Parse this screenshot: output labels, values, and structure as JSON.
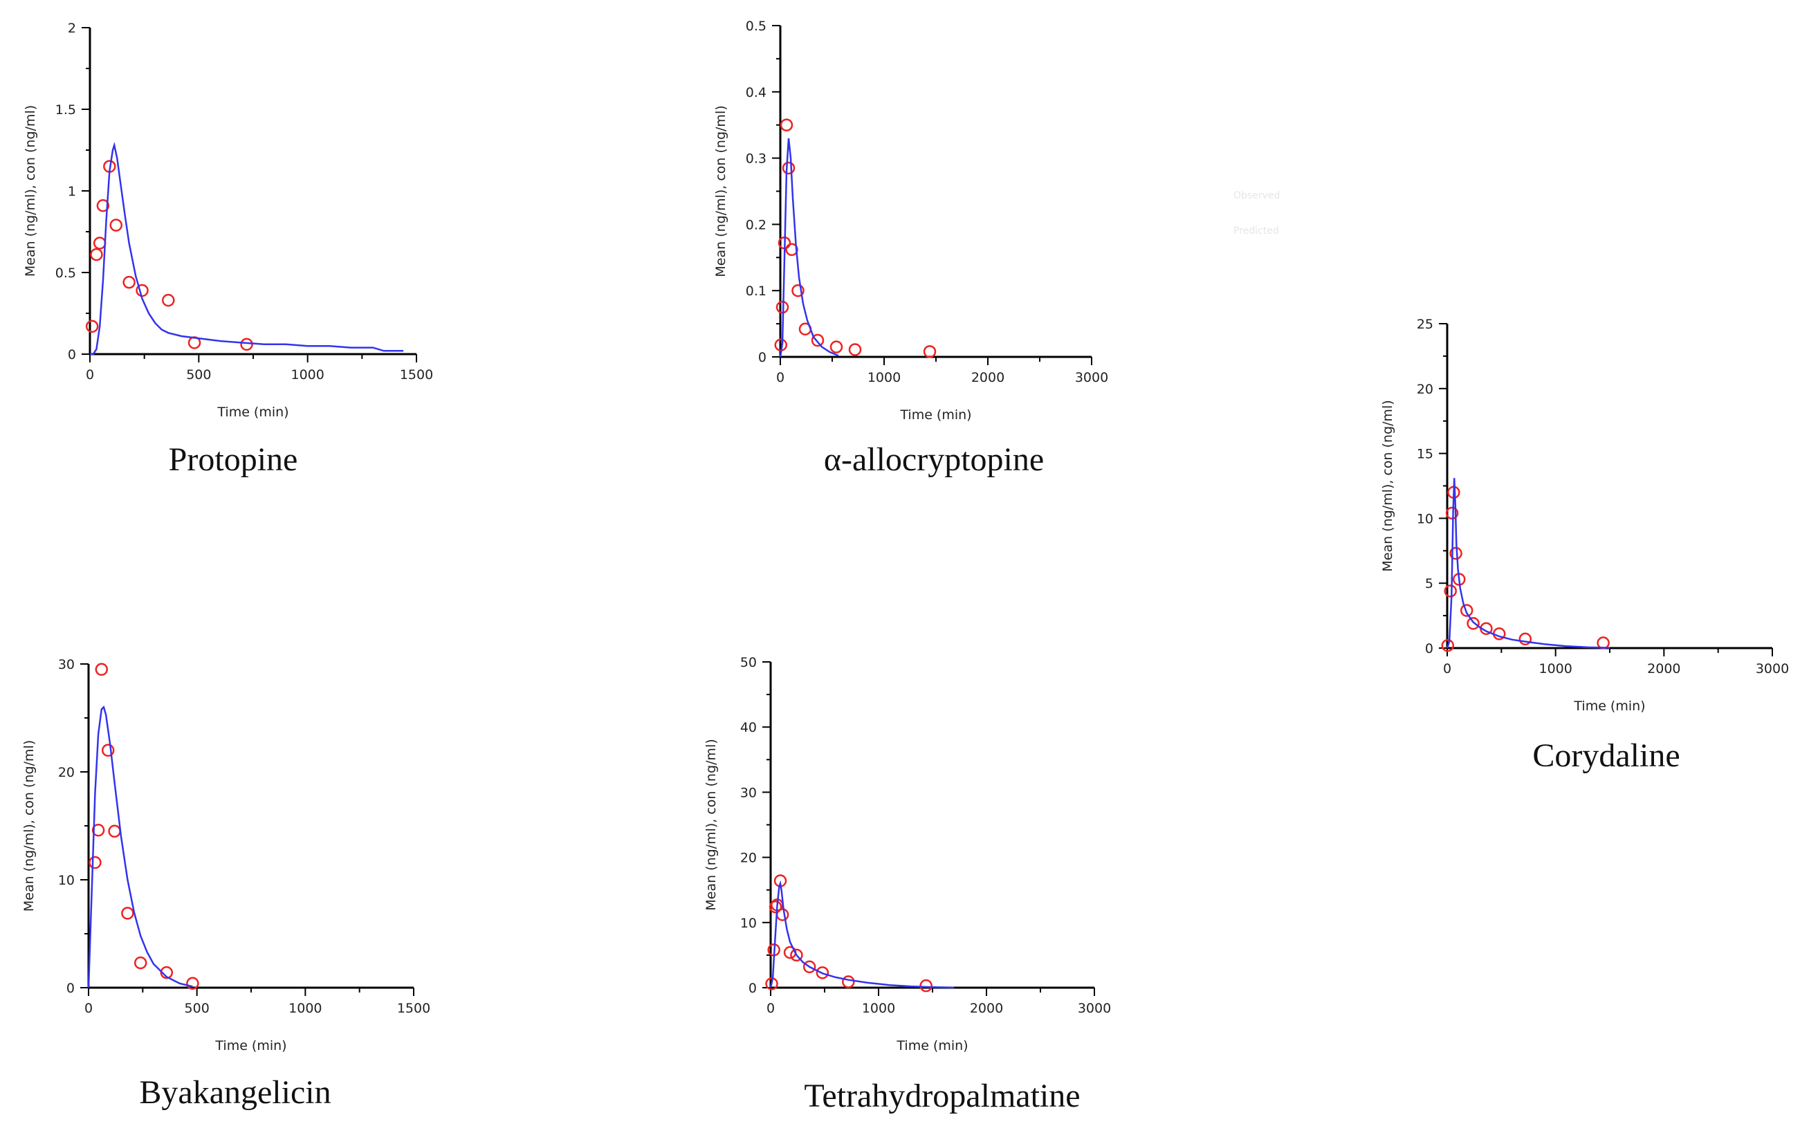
{
  "colors": {
    "observed": "#ee2222",
    "predicted": "#3333ee",
    "axis": "#000000"
  },
  "ghost_legend": {
    "observed": "Observed",
    "predicted": "Predicted"
  },
  "chart_data": [
    {
      "type": "line",
      "caption": "Protopine",
      "xlabel": "Time (min)",
      "ylabel": "Mean (ng/ml), con (ng/ml)",
      "xlim": [
        0,
        1500
      ],
      "ylim": [
        0,
        2
      ],
      "xticks": [
        0,
        500,
        1000,
        1500
      ],
      "yticks": [
        0,
        0.5,
        1,
        1.5,
        2
      ],
      "ytick_labels": [
        "0",
        "0.5",
        "1",
        "1.5",
        "2"
      ],
      "series": [
        {
          "kind": "observed",
          "x": [
            10,
            30,
            45,
            60,
            90,
            120,
            180,
            240,
            360,
            480,
            720
          ],
          "y": [
            0.17,
            0.61,
            0.68,
            0.91,
            1.15,
            0.79,
            0.44,
            0.39,
            0.33,
            0.07,
            0.06
          ]
        },
        {
          "kind": "predicted",
          "x": [
            0,
            15,
            30,
            45,
            60,
            75,
            90,
            105,
            112,
            125,
            140,
            160,
            180,
            210,
            240,
            270,
            300,
            330,
            360,
            420,
            480,
            540,
            600,
            700,
            800,
            900,
            1000,
            1100,
            1200,
            1300,
            1350,
            1440
          ],
          "y": [
            0,
            0,
            0.03,
            0.17,
            0.45,
            0.82,
            1.12,
            1.25,
            1.28,
            1.2,
            1.05,
            0.86,
            0.68,
            0.48,
            0.34,
            0.25,
            0.19,
            0.15,
            0.13,
            0.11,
            0.1,
            0.09,
            0.08,
            0.07,
            0.06,
            0.06,
            0.05,
            0.05,
            0.04,
            0.04,
            0.02,
            0.02
          ]
        }
      ]
    },
    {
      "type": "line",
      "caption": "α-allocryptopine",
      "xlabel": "Time (min)",
      "ylabel": "Mean (ng/ml), con (ng/ml)",
      "xlim": [
        0,
        3000
      ],
      "ylim": [
        0,
        0.5
      ],
      "xticks": [
        0,
        1000,
        2000,
        3000
      ],
      "yticks": [
        0,
        0.1,
        0.2,
        0.3,
        0.4,
        0.5
      ],
      "ytick_labels": [
        "0",
        "0.1",
        "0.2",
        "0.3",
        "0.4",
        "0.5"
      ],
      "series": [
        {
          "kind": "observed",
          "x": [
            5,
            20,
            40,
            60,
            80,
            110,
            170,
            240,
            360,
            540,
            720,
            1440
          ],
          "y": [
            0.018,
            0.075,
            0.172,
            0.35,
            0.285,
            0.162,
            0.1,
            0.042,
            0.025,
            0.015,
            0.011,
            0.008
          ]
        },
        {
          "kind": "predicted",
          "x": [
            0,
            20,
            40,
            60,
            80,
            100,
            120,
            150,
            180,
            220,
            260,
            320,
            400,
            480,
            560
          ],
          "y": [
            0,
            0.02,
            0.15,
            0.28,
            0.33,
            0.3,
            0.24,
            0.17,
            0.12,
            0.08,
            0.055,
            0.03,
            0.015,
            0.007,
            0.002
          ]
        }
      ]
    },
    {
      "type": "line",
      "caption": "Corydaline",
      "xlabel": "Time (min)",
      "ylabel": "Mean (ng/ml), con (ng/ml)",
      "xlim": [
        0,
        3000
      ],
      "ylim": [
        0,
        25
      ],
      "xticks": [
        0,
        1000,
        2000,
        3000
      ],
      "yticks": [
        0,
        5,
        10,
        15,
        20,
        25
      ],
      "ytick_labels": [
        "0",
        "5",
        "10",
        "15",
        "20",
        "25"
      ],
      "series": [
        {
          "kind": "observed",
          "x": [
            5,
            30,
            45,
            60,
            80,
            110,
            180,
            240,
            360,
            480,
            720,
            1440
          ],
          "y": [
            0.2,
            4.4,
            10.4,
            12.0,
            7.3,
            5.3,
            2.9,
            1.9,
            1.5,
            1.1,
            0.7,
            0.4
          ]
        },
        {
          "kind": "predicted",
          "x": [
            0,
            20,
            40,
            55,
            65,
            75,
            85,
            100,
            120,
            150,
            180,
            240,
            300,
            360,
            480,
            600,
            720,
            900,
            1100,
            1300,
            1500
          ],
          "y": [
            0,
            0.5,
            4.0,
            10.5,
            13.1,
            11.0,
            8.0,
            6.0,
            4.6,
            3.4,
            2.7,
            2.0,
            1.6,
            1.3,
            0.9,
            0.65,
            0.5,
            0.3,
            0.15,
            0.06,
            0.02
          ]
        }
      ]
    },
    {
      "type": "line",
      "caption": "Byakangelicin",
      "xlabel": "Time (min)",
      "ylabel": "Mean (ng/ml), con (ng/ml)",
      "xlim": [
        0,
        1500
      ],
      "ylim": [
        0,
        30
      ],
      "xticks": [
        0,
        500,
        1000,
        1500
      ],
      "yticks": [
        0,
        10,
        20,
        30
      ],
      "ytick_labels": [
        "0",
        "10",
        "20",
        "30"
      ],
      "series": [
        {
          "kind": "observed",
          "x": [
            30,
            45,
            60,
            90,
            120,
            180,
            240,
            360,
            480
          ],
          "y": [
            11.6,
            14.6,
            29.5,
            22.0,
            14.5,
            6.9,
            2.3,
            1.4,
            0.4
          ]
        },
        {
          "kind": "predicted",
          "x": [
            0,
            15,
            30,
            45,
            60,
            70,
            80,
            100,
            120,
            150,
            180,
            210,
            240,
            270,
            300,
            360,
            420,
            480
          ],
          "y": [
            0,
            9.0,
            18.0,
            23.5,
            25.8,
            26.0,
            25.3,
            22.5,
            19.0,
            14.0,
            10.0,
            7.0,
            4.8,
            3.3,
            2.2,
            1.0,
            0.4,
            0.1
          ]
        }
      ]
    },
    {
      "type": "line",
      "caption": "Tetrahydropalmatine",
      "xlabel": "Time (min)",
      "ylabel": "Mean (ng/ml), con (ng/ml)",
      "xlim": [
        0,
        3000
      ],
      "ylim": [
        0,
        50
      ],
      "xticks": [
        0,
        1000,
        2000,
        3000
      ],
      "yticks": [
        0,
        10,
        20,
        30,
        40,
        50
      ],
      "ytick_labels": [
        "0",
        "10",
        "20",
        "30",
        "40",
        "50"
      ],
      "series": [
        {
          "kind": "observed",
          "x": [
            10,
            30,
            45,
            60,
            90,
            110,
            180,
            240,
            360,
            480,
            720,
            1440
          ],
          "y": [
            0.6,
            5.8,
            12.4,
            12.7,
            16.4,
            11.2,
            5.4,
            5.0,
            3.2,
            2.3,
            0.9,
            0.3
          ]
        },
        {
          "kind": "predicted",
          "x": [
            0,
            20,
            40,
            60,
            80,
            90,
            100,
            120,
            150,
            180,
            240,
            300,
            360,
            480,
            600,
            720,
            900,
            1100,
            1300,
            1500,
            1700
          ],
          "y": [
            0,
            1.5,
            7.0,
            12.5,
            15.6,
            16.0,
            15.0,
            12.0,
            9.0,
            7.0,
            5.0,
            3.9,
            3.2,
            2.2,
            1.6,
            1.2,
            0.75,
            0.4,
            0.2,
            0.08,
            0.02
          ]
        }
      ]
    }
  ]
}
